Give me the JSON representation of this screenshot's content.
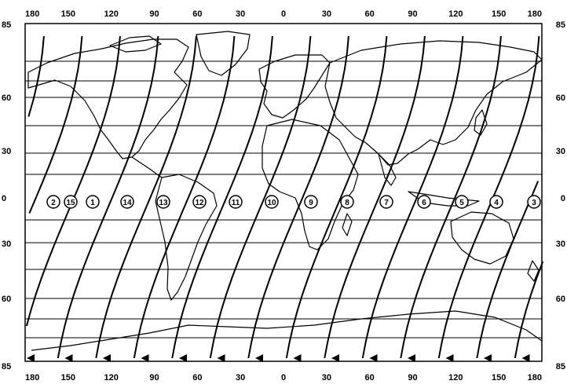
{
  "top_lon_labels": [
    "180",
    "150",
    "120",
    "90",
    "60",
    "30",
    "0",
    "30",
    "60",
    "90",
    "120",
    "150",
    "180"
  ],
  "bottom_lon_labels": [
    "180",
    "150",
    "120",
    "90",
    "60",
    "30",
    "0",
    "30",
    "60",
    "90",
    "120",
    "150",
    "180"
  ],
  "left_lat_labels": [
    "85",
    "60",
    "30",
    "0",
    "30",
    "60",
    "85"
  ],
  "right_lat_labels": [
    "85",
    "60",
    "30",
    "0",
    "30",
    "60",
    "85"
  ],
  "orbit_labels": [
    "2",
    "15",
    "1",
    "14",
    "13",
    "12",
    "11",
    "10",
    "9",
    "8",
    "7",
    "6",
    "5",
    "4",
    "3"
  ],
  "colors": {
    "ink": "#000000",
    "paper": "#ffffff"
  }
}
